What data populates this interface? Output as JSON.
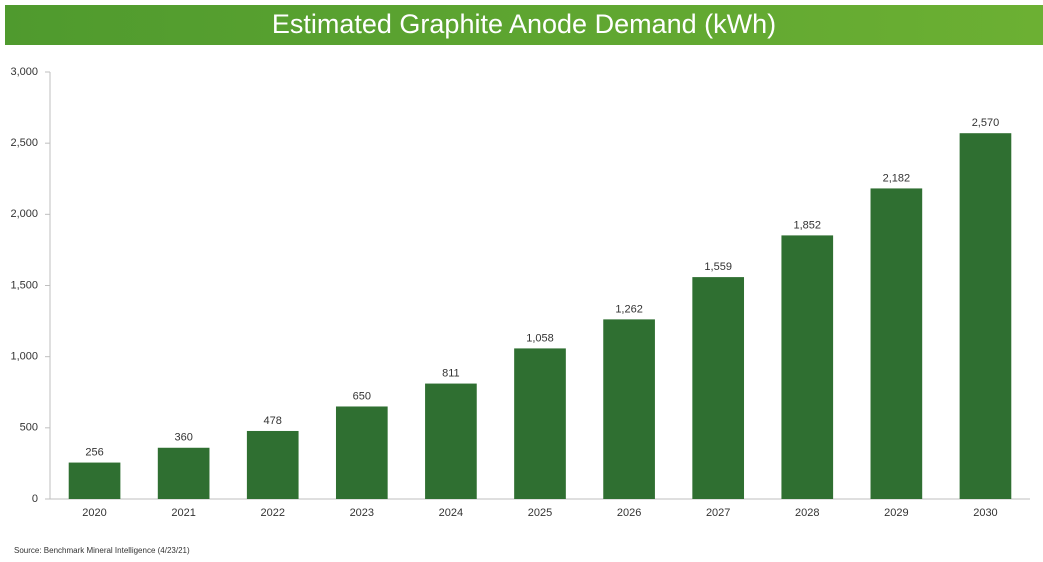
{
  "chart_data": {
    "type": "bar",
    "title": "Estimated Graphite Anode Demand (kWh)",
    "categories": [
      "2020",
      "2021",
      "2022",
      "2023",
      "2024",
      "2025",
      "2026",
      "2027",
      "2028",
      "2029",
      "2030"
    ],
    "values": [
      256,
      360,
      478,
      650,
      811,
      1058,
      1262,
      1559,
      1852,
      2182,
      2570
    ],
    "value_labels": [
      "256",
      "360",
      "478",
      "650",
      "811",
      "1,058",
      "1,262",
      "1,559",
      "1,852",
      "2,182",
      "2,570"
    ],
    "color": "#2f6f31",
    "ylim": [
      0,
      3000
    ],
    "yticks": [
      0,
      500,
      {
        "value": 1000,
        "label": "1,000"
      },
      {
        "value": 1500,
        "label": "1,500"
      },
      {
        "value": 2000,
        "label": "2,000"
      },
      {
        "value": 2500,
        "label": "2,500"
      },
      {
        "value": 3000,
        "label": "3,000"
      }
    ],
    "grid": false,
    "source": "Source: Benchmark Mineral Intelligence (4/23/21)"
  }
}
